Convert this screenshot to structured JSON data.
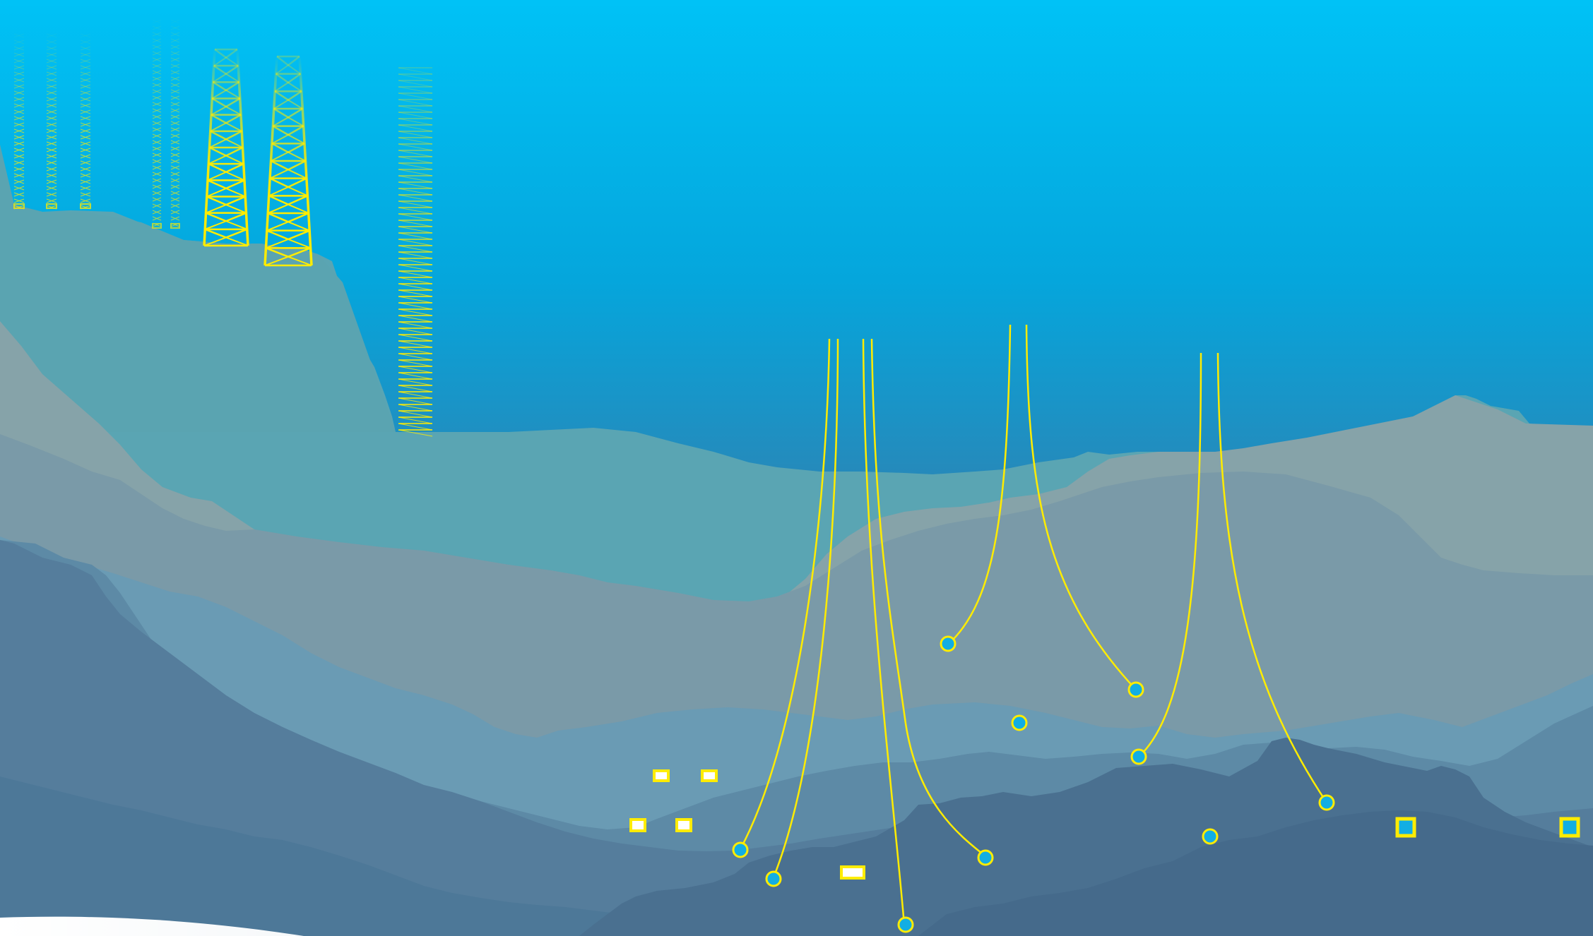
{
  "colors": {
    "sky_top": "#00c2f6",
    "sky_mid": "#0aa0d6",
    "sky_bottom": "#3a78a8",
    "structure": "#ffec00",
    "node_fill": "#12aee3",
    "seabed_layers": [
      "#5aa4b2",
      "#84a3a8",
      "#7697a6",
      "#6a98b3",
      "#52809f",
      "#45698c"
    ]
  },
  "scene": {
    "type": "offshore-deepwater-infrastructure-illustration",
    "platforms": [
      {
        "kind": "fixed-jacket"
      },
      {
        "kind": "fixed-jacket"
      },
      {
        "kind": "fixed-jacket"
      },
      {
        "kind": "fixed-jacket"
      },
      {
        "kind": "fixed-jacket"
      },
      {
        "kind": "fixed-jacket"
      },
      {
        "kind": "fixed-jacket"
      },
      {
        "kind": "compliant-tower"
      }
    ],
    "vertical_tether_groups": 4,
    "spread_mooring_groups": 3,
    "single_line_anchors": 2,
    "anchor_nodes": 12,
    "subsea_boxes": 8,
    "text_labels": []
  }
}
